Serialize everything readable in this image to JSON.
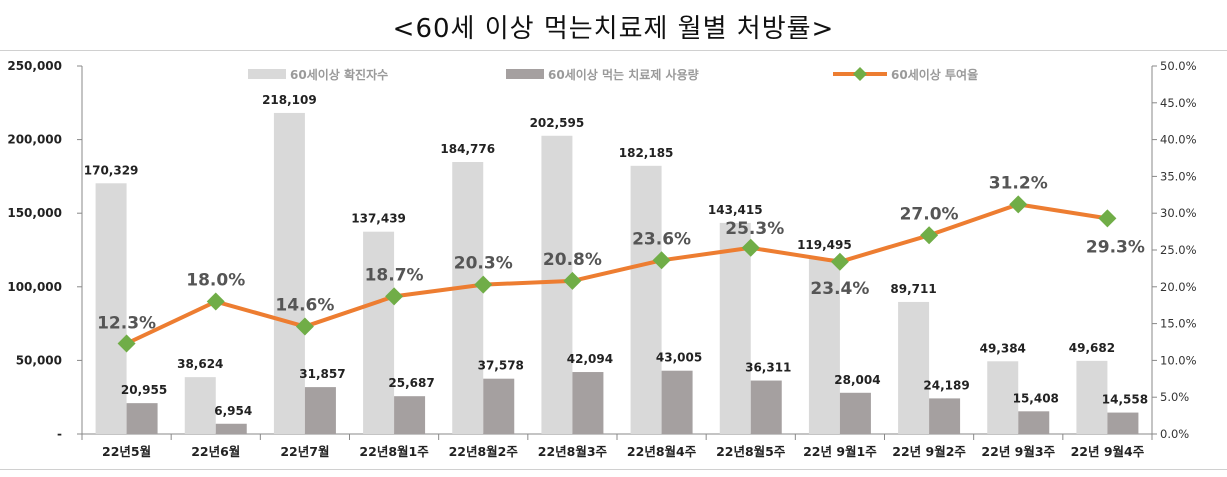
{
  "chart_data": {
    "type": "bar",
    "title": "<60세 이상 먹는치료제 월별 처방률>",
    "categories": [
      "22년5월",
      "22년6월",
      "22년7월",
      "22년8월1주",
      "22년8월2주",
      "22년8월3주",
      "22년8월4주",
      "22년8월5주",
      "22년 9월1주",
      "22년 9월2주",
      "22년 9월3주",
      "22년 9월4주"
    ],
    "series": [
      {
        "name": "60세이상 확진자수",
        "type": "bar",
        "axis": "left",
        "color": "#d9d9d9",
        "values": [
          170329,
          38624,
          218109,
          137439,
          184776,
          202595,
          182185,
          143415,
          119495,
          89711,
          49384,
          49682
        ],
        "labels": [
          "170,329",
          "38,624",
          "218,109",
          "137,439",
          "184,776",
          "202,595",
          "182,185",
          "143,415",
          "119,495",
          "89,711",
          "49,384",
          "49,682"
        ]
      },
      {
        "name": "60세이상 먹는 치료제 사용량",
        "type": "bar",
        "axis": "left",
        "color": "#a5a0a0",
        "values": [
          20955,
          6954,
          31857,
          25687,
          37578,
          42094,
          43005,
          36311,
          28004,
          24189,
          15408,
          14558
        ],
        "labels": [
          "20,955",
          "6,954",
          "31,857",
          "25,687",
          "37,578",
          "42,094",
          "43,005",
          "36,311",
          "28,004",
          "24,189",
          "15,408",
          "14,558"
        ]
      },
      {
        "name": "60세이상 투여율",
        "type": "line",
        "axis": "right",
        "color": "#ed7d31",
        "marker_color": "#70ad47",
        "values": [
          12.3,
          18.0,
          14.6,
          18.7,
          20.3,
          20.8,
          23.6,
          25.3,
          23.4,
          27.0,
          31.2,
          29.3
        ],
        "labels": [
          "12.3%",
          "18.0%",
          "14.6%",
          "18.7%",
          "20.3%",
          "20.8%",
          "23.6%",
          "25.3%",
          "23.4%",
          "27.0%",
          "31.2%",
          "29.3%"
        ]
      }
    ],
    "y_left": {
      "range": [
        0,
        250000
      ],
      "ticks": [
        0,
        50000,
        100000,
        150000,
        200000,
        250000
      ],
      "tick_labels": [
        "-",
        "50,000",
        "100,000",
        "150,000",
        "200,000",
        "250,000"
      ]
    },
    "y_right": {
      "range": [
        0,
        50
      ],
      "ticks": [
        0,
        5,
        10,
        15,
        20,
        25,
        30,
        35,
        40,
        45,
        50
      ],
      "tick_labels": [
        "0.0%",
        "5.0%",
        "10.0%",
        "15.0%",
        "20.0%",
        "25.0%",
        "30.0%",
        "35.0%",
        "40.0%",
        "45.0%",
        "50.0%"
      ]
    },
    "grid": false,
    "legend_position": "top"
  }
}
